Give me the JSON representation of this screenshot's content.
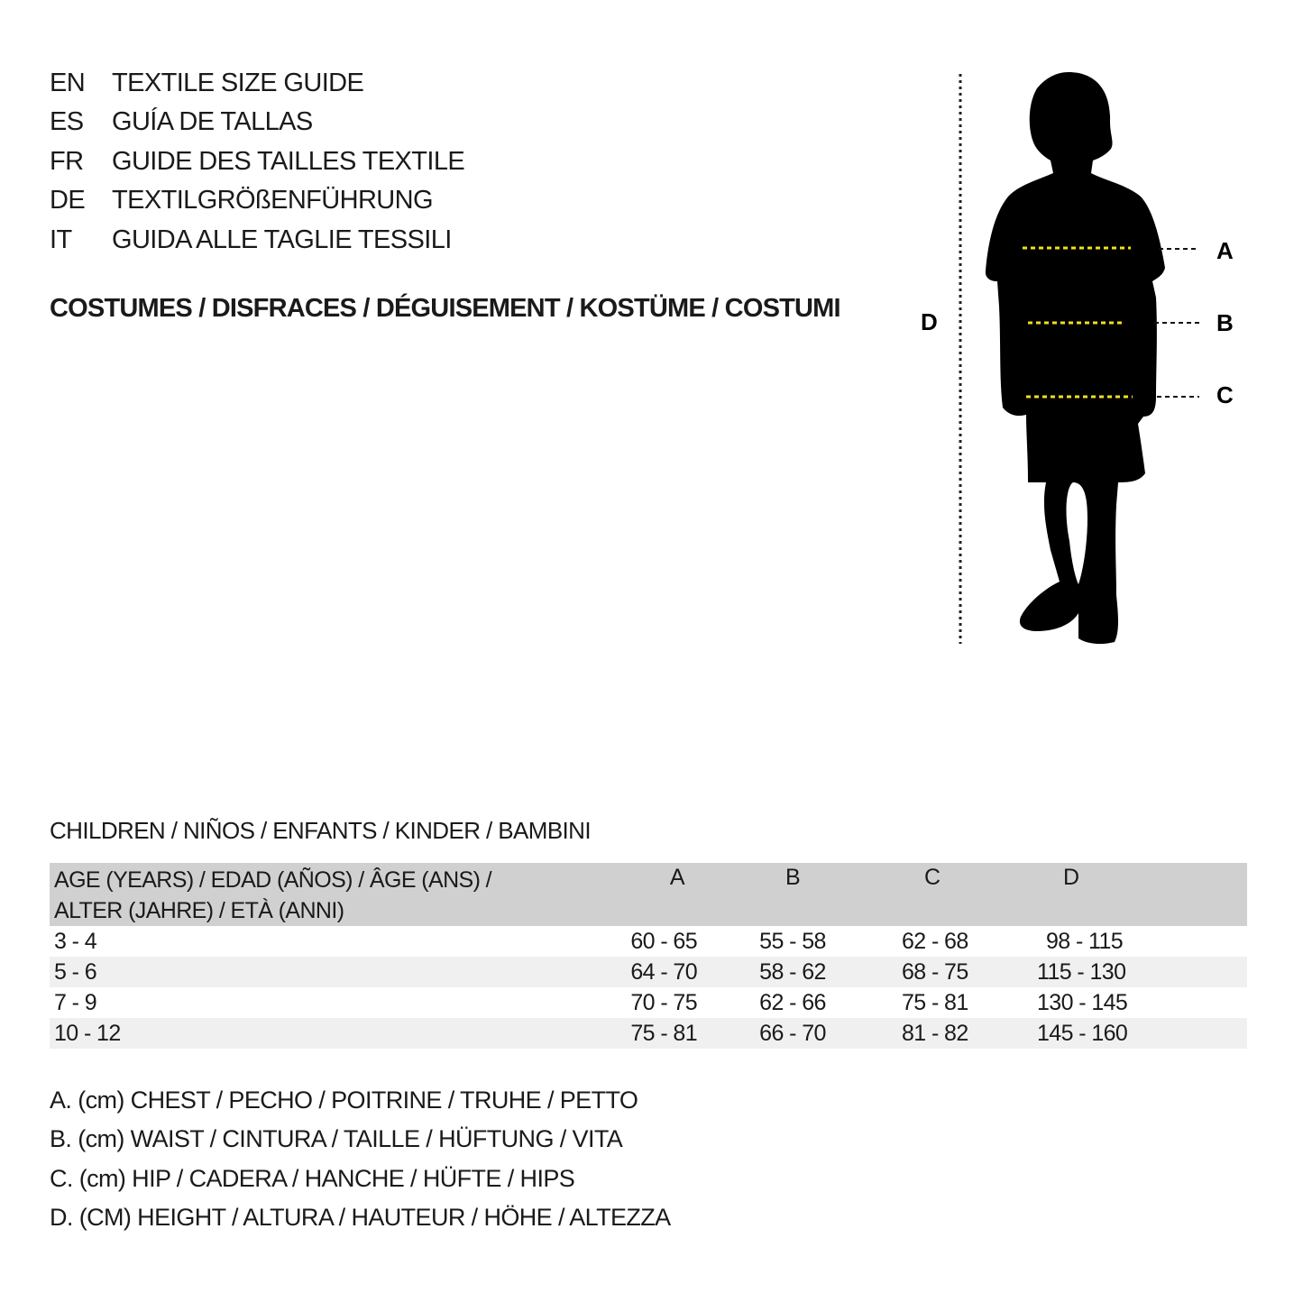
{
  "titles": [
    {
      "code": "EN",
      "text": "TEXTILE SIZE GUIDE"
    },
    {
      "code": "ES",
      "text": "GUÍA DE TALLAS"
    },
    {
      "code": "FR",
      "text": "GUIDE DES TAILLES TEXTILE"
    },
    {
      "code": "DE",
      "text": "TEXTILGRÖßENFÜHRUNG"
    },
    {
      "code": "IT",
      "text": "GUIDA ALLE TAGLIE TESSILI"
    }
  ],
  "subtitle": "COSTUMES / DISFRACES / DÉGUISEMENT / KOSTÜME / COSTUMI",
  "figure": {
    "labels": {
      "a": "A",
      "b": "B",
      "c": "C",
      "d": "D"
    },
    "marker_color": "#f2e01c"
  },
  "section": "CHILDREN / NIÑOS / ENFANTS / KINDER / BAMBINI",
  "table": {
    "header_line1": "AGE (YEARS) / EDAD (AÑOS) / ÂGE (ANS) /",
    "header_line2": "ALTER (JAHRE) / ETÀ (ANNI)",
    "columns": [
      "A",
      "B",
      "C",
      "D"
    ],
    "rows": [
      [
        "3 - 4",
        "60 - 65",
        "55 - 58",
        "62 - 68",
        "98 - 115"
      ],
      [
        "5 - 6",
        "64 - 70",
        "58 - 62",
        "68 - 75",
        "115 - 130"
      ],
      [
        "7 - 9",
        "70 - 75",
        "62 - 66",
        "75 - 81",
        "130 - 145"
      ],
      [
        "10 - 12",
        "75 - 81",
        "66 - 70",
        "81 - 82",
        "145 - 160"
      ]
    ]
  },
  "legend": [
    "A. (cm) CHEST / PECHO / POITRINE / TRUHE / PETTO",
    "B. (cm) WAIST / CINTURA / TAILLE / HÜFTUNG / VITA",
    "C. (cm) HIP / CADERA / HANCHE / HÜFTE / HIPS",
    "D. (CM) HEIGHT / ALTURA / HAUTEUR / HÖHE / ALTEZZA"
  ]
}
